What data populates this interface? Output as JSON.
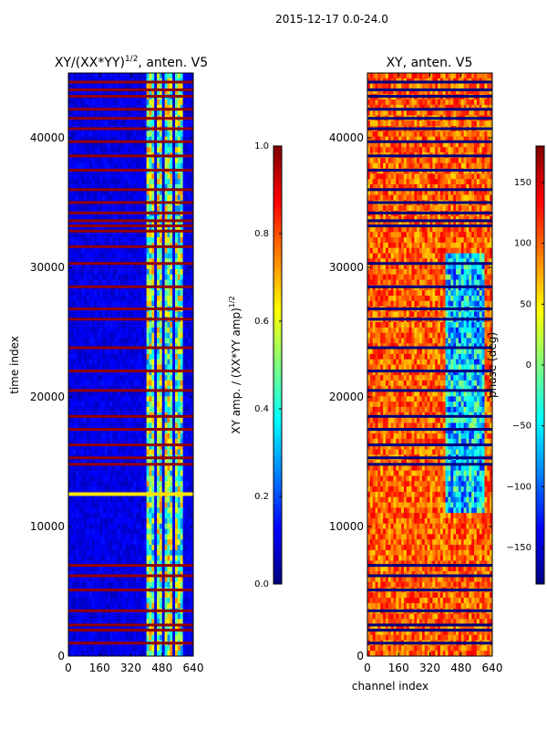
{
  "figure_title": "2015-12-17 0.0-24.0",
  "colors": {
    "axis": "#000000",
    "background": "#ffffff"
  },
  "chart_data": [
    {
      "type": "heatmap",
      "title_main": "XY/(XX*YY)",
      "title_sup": "1/2",
      "title_tail": ", anten. V5",
      "xlabel": "",
      "ylabel": "time index",
      "xlim": [
        0,
        640
      ],
      "ylim": [
        0,
        45000
      ],
      "xticks": [
        0,
        160,
        320,
        480,
        640
      ],
      "yticks": [
        0,
        10000,
        20000,
        30000,
        40000
      ],
      "colormap": "jet",
      "colorbar": {
        "label_main": "XY amp. / (XX*YY amp)",
        "label_sup": "1/2",
        "range": [
          0.0,
          1.0
        ],
        "ticks": [
          "0.0",
          "0.2",
          "0.4",
          "0.6",
          "0.8",
          "1.0"
        ]
      },
      "base_value": 0.1,
      "flagged_rows_time_index": [
        1000,
        2000,
        2400,
        3500,
        5100,
        6200,
        7000,
        12500,
        14800,
        15300,
        16300,
        17500,
        18500,
        20500,
        22000,
        23800,
        26000,
        26800,
        28500,
        30300,
        31600,
        32800,
        33200,
        33600,
        34200,
        35000,
        36000,
        37500,
        38600,
        39700,
        40700,
        41500,
        42200,
        43200,
        43700,
        44300
      ],
      "bright_band_channels": [
        [
          400,
          440
        ],
        [
          460,
          485
        ],
        [
          500,
          530
        ],
        [
          545,
          590
        ]
      ],
      "bright_band_value": 0.5,
      "horizontal_feature": {
        "time_index": 12500,
        "channel_range": [
          0,
          640
        ],
        "value": 0.65
      }
    },
    {
      "type": "heatmap",
      "title_main": "XY, anten. V5",
      "xlabel": "channel index",
      "ylabel": "",
      "xlim": [
        0,
        640
      ],
      "ylim": [
        0,
        45000
      ],
      "xticks": [
        0,
        160,
        320,
        480,
        640
      ],
      "yticks": [
        0,
        10000,
        20000,
        30000,
        40000
      ],
      "colormap": "jet",
      "colorbar": {
        "label_main": "phase (deg)",
        "range": [
          -180,
          180
        ],
        "ticks": [
          "−150",
          "−100",
          "−50",
          "0",
          "50",
          "100",
          "150"
        ],
        "tick_values": [
          -150,
          -100,
          -50,
          0,
          50,
          100,
          150
        ]
      },
      "base_value": 100,
      "flagged_rows_time_index": [
        1000,
        2000,
        2400,
        3500,
        5100,
        6200,
        7000,
        14800,
        15300,
        16300,
        17500,
        18500,
        20500,
        22000,
        23800,
        26000,
        26800,
        28500,
        30300,
        33200,
        33600,
        34200,
        35000,
        36000,
        37500,
        38600,
        39700,
        40700,
        41500,
        42200,
        43200,
        43700,
        44300
      ],
      "low_region_channels": [
        400,
        600
      ],
      "low_region_value": -60
    }
  ]
}
